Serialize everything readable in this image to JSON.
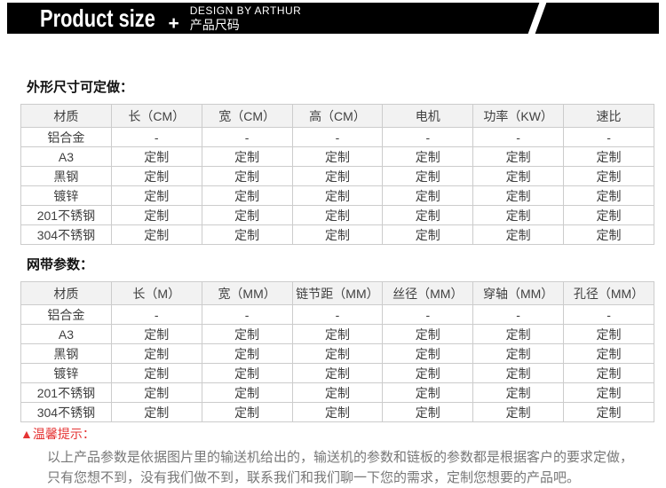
{
  "header": {
    "brand": "Product size",
    "plus": "+",
    "design_by": "DESIGN BY ARTHUR",
    "subtitle_cn": "产品尺码"
  },
  "colors": {
    "bar_bg": "#000000",
    "accent_red": "#e53333",
    "table_border": "#cccccc",
    "table_header_bg": "#f2f2f2",
    "table_text": "#404040",
    "note_text": "#777777"
  },
  "sections": {
    "outer_size": {
      "title": "外形尺寸可定做：",
      "table": {
        "columns": [
          "材质",
          "长（CM）",
          "宽（CM）",
          "高（CM）",
          "电机",
          "功率（KW）",
          "速比"
        ],
        "rows": [
          [
            "铝合金",
            "-",
            "-",
            "-",
            "-",
            "-",
            "-"
          ],
          [
            "A3",
            "定制",
            "定制",
            "定制",
            "定制",
            "定制",
            "定制"
          ],
          [
            "黑钢",
            "定制",
            "定制",
            "定制",
            "定制",
            "定制",
            "定制"
          ],
          [
            "镀锌",
            "定制",
            "定制",
            "定制",
            "定制",
            "定制",
            "定制"
          ],
          [
            "201不锈钢",
            "定制",
            "定制",
            "定制",
            "定制",
            "定制",
            "定制"
          ],
          [
            "304不锈钢",
            "定制",
            "定制",
            "定制",
            "定制",
            "定制",
            "定制"
          ]
        ]
      }
    },
    "mesh_belt": {
      "title": "网带参数：",
      "table": {
        "columns": [
          "材质",
          "长（M）",
          "宽（MM）",
          "链节距（MM）",
          "丝径（MM）",
          "穿轴（MM）",
          "孔径（MM）"
        ],
        "rows": [
          [
            "铝合金",
            "-",
            "-",
            "-",
            "-",
            "-",
            "-"
          ],
          [
            "A3",
            "定制",
            "定制",
            "定制",
            "定制",
            "定制",
            "定制"
          ],
          [
            "黑钢",
            "定制",
            "定制",
            "定制",
            "定制",
            "定制",
            "定制"
          ],
          [
            "镀锌",
            "定制",
            "定制",
            "定制",
            "定制",
            "定制",
            "定制"
          ],
          [
            "201不锈钢",
            "定制",
            "定制",
            "定制",
            "定制",
            "定制",
            "定制"
          ],
          [
            "304不锈钢",
            "定制",
            "定制",
            "定制",
            "定制",
            "定制",
            "定制"
          ]
        ]
      }
    }
  },
  "notice": {
    "label": "▲温馨提示：",
    "line1": "以上产品参数是依据图片里的输送机给出的，输送机的参数和链板的参数都是根据客户的要求定做，",
    "line2": "只有您想不到，没有我们做不到，联系我们和我们聊一下您的需求，定制您想要的产品吧。"
  }
}
